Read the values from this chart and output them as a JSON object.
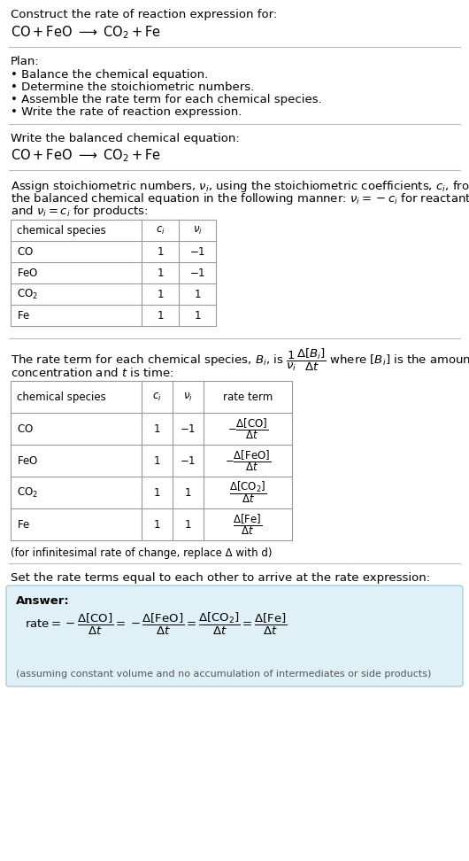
{
  "bg_color": "#ffffff",
  "text_color": "#000000",
  "answer_box_color": "#dff0f7",
  "answer_box_edge": "#aacce0",
  "title_text": "Construct the rate of reaction expression for:",
  "section1_title": "Plan:",
  "plan_items": [
    "• Balance the chemical equation.",
    "• Determine the stoichiometric numbers.",
    "• Assemble the rate term for each chemical species.",
    "• Write the rate of reaction expression."
  ],
  "section2_title": "Write the balanced chemical equation:",
  "table1_headers": [
    "chemical species",
    "c_i",
    "nu_i"
  ],
  "table1_rows": [
    [
      "CO",
      "1",
      "-1"
    ],
    [
      "FeO",
      "1",
      "-1"
    ],
    [
      "CO2",
      "1",
      "1"
    ],
    [
      "Fe",
      "1",
      "1"
    ]
  ],
  "table2_headers": [
    "chemical species",
    "c_i",
    "nu_i",
    "rate term"
  ],
  "table2_rows": [
    [
      "CO",
      "1",
      "-1"
    ],
    [
      "FeO",
      "1",
      "-1"
    ],
    [
      "CO2",
      "1",
      "1"
    ],
    [
      "Fe",
      "1",
      "1"
    ]
  ],
  "infinitesimal_note": "(for infinitesimal rate of change, replace Δ with d)",
  "section5_title": "Set the rate terms equal to each other to arrive at the rate expression:",
  "answer_label": "Answer:",
  "answer_note": "(assuming constant volume and no accumulation of intermediates or side products)"
}
